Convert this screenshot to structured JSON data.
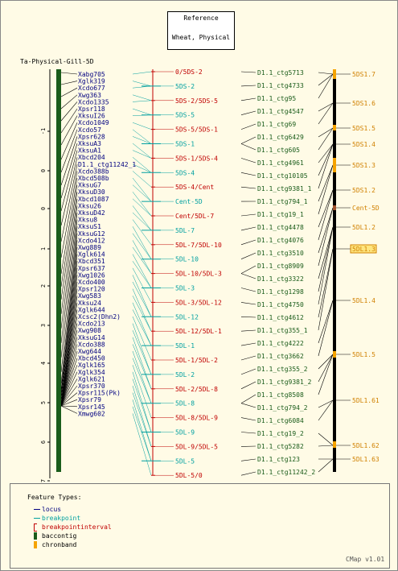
{
  "title_box": {
    "line1": "Reference",
    "line2": "Wheat, Physical"
  },
  "map_title": "Ta-Physical-Gill-5D",
  "footer": "CMap v1.01",
  "colors": {
    "locus": "#000080",
    "breakpoint": "#00a0a0",
    "interval": "#c00000",
    "contig": "#1a5c1a",
    "chronband": "#f5a300",
    "bg": "#fffbe6"
  },
  "axis_ticks": [
    "-1",
    "0",
    "0",
    "1",
    "2",
    "3",
    "4",
    "5",
    "6",
    "7"
  ],
  "loci": [
    "Xabg705",
    "Xglk319",
    "Xcdo677",
    "Xwg363",
    "Xcdo1335",
    "Xpsr118",
    "XksuI26",
    "Xcdo1049",
    "Xcdo57",
    "Xpsr628",
    "XksuA3",
    "XksuA1",
    "Xbcd204",
    "D1.1_ctg11242_1",
    "Xcdo388b",
    "Xbcd508b",
    "XksuG7",
    "XksuD30",
    "Xbcd1087",
    "Xksu26",
    "XksuD42",
    "Xksu8",
    "XksuS1",
    "XksuG12",
    "Xcdo412",
    "Xwg889",
    "Xglk614",
    "Xbcd351",
    "Xpsr637",
    "Xwg1026",
    "Xcdo400",
    "Xpsr120",
    "Xwg583",
    "Xksu24",
    "Xglk644",
    "Xcsc2(Dhn2)",
    "Xcdo213",
    "Xwg908",
    "XksuG14",
    "Xcdo388",
    "Xwg644",
    "Xbcd450",
    "Xglk165",
    "Xglk354",
    "Xglk621",
    "Xpsr370",
    "Xpsr115(Pk)",
    "Xpsr79",
    "Xpsr145",
    "Xmwg602"
  ],
  "breakpoints": [
    {
      "label": "0/5DS-2",
      "kind": "interval"
    },
    {
      "label": "5DS-2",
      "kind": "breakpoint"
    },
    {
      "label": "5DS-2/5DS-5",
      "kind": "interval"
    },
    {
      "label": "5DS-5",
      "kind": "breakpoint"
    },
    {
      "label": "5DS-5/5DS-1",
      "kind": "interval"
    },
    {
      "label": "5DS-1",
      "kind": "breakpoint"
    },
    {
      "label": "5DS-1/5DS-4",
      "kind": "interval"
    },
    {
      "label": "5DS-4",
      "kind": "breakpoint"
    },
    {
      "label": "5DS-4/Cent",
      "kind": "interval"
    },
    {
      "label": "Cent-5D",
      "kind": "breakpoint"
    },
    {
      "label": "Cent/5DL-7",
      "kind": "interval"
    },
    {
      "label": "5DL-7",
      "kind": "breakpoint"
    },
    {
      "label": "5DL-7/5DL-10",
      "kind": "interval"
    },
    {
      "label": "5DL-10",
      "kind": "breakpoint"
    },
    {
      "label": "5DL-10/5DL-3",
      "kind": "interval"
    },
    {
      "label": "5DL-3",
      "kind": "breakpoint"
    },
    {
      "label": "5DL-3/5DL-12",
      "kind": "interval"
    },
    {
      "label": "5DL-12",
      "kind": "breakpoint"
    },
    {
      "label": "5DL-12/5DL-1",
      "kind": "interval"
    },
    {
      "label": "5DL-1",
      "kind": "breakpoint"
    },
    {
      "label": "5DL-1/5DL-2",
      "kind": "interval"
    },
    {
      "label": "5DL-2",
      "kind": "breakpoint"
    },
    {
      "label": "5DL-2/5DL-8",
      "kind": "interval"
    },
    {
      "label": "5DL-8",
      "kind": "breakpoint"
    },
    {
      "label": "5DL-8/5DL-9",
      "kind": "interval"
    },
    {
      "label": "5DL-9",
      "kind": "breakpoint"
    },
    {
      "label": "5DL-9/5DL-5",
      "kind": "interval"
    },
    {
      "label": "5DL-5",
      "kind": "breakpoint"
    },
    {
      "label": "5DL-5/0",
      "kind": "interval"
    }
  ],
  "contigs": [
    "D1.1_ctg5713",
    "D1.1_ctg4733",
    "D1.1_ctg95",
    "D1.1_ctg4547",
    "D1.1_ctg69",
    "D1.1_ctg6429",
    "D1.1_ctg605",
    "D1.1_ctg4961",
    "D1.1_ctg10105",
    "D1.1_ctg9381_1",
    "D1.1_ctg794_1",
    "D1.1_ctg19_1",
    "D1.1_ctg4478",
    "D1.1_ctg4076",
    "D1.1_ctg3510",
    "D1.1_ctg8909",
    "D1.1_ctg3322",
    "D1.1_ctg1298",
    "D1.1_ctg4750",
    "D1.1_ctg4612",
    "D1.1_ctg355_1",
    "D1.1_ctg4222",
    "D1.1_ctg3662",
    "D1.1_ctg355_2",
    "D1.1_ctg9381_2",
    "D1.1_ctg8508",
    "D1.1_ctg794_2",
    "D1.1_ctg6084",
    "D1.1_ctg19_2",
    "D1.1_ctg5282",
    "D1.1_ctg123",
    "D1.1_ctg11242_2"
  ],
  "chronbands": [
    {
      "label": "5DS1.7",
      "highlight": false
    },
    {
      "label": "5DS1.6",
      "highlight": false
    },
    {
      "label": "5DS1.5",
      "highlight": false
    },
    {
      "label": "5DS1.4",
      "highlight": false
    },
    {
      "label": "5DS1.3",
      "highlight": false
    },
    {
      "label": "5DS1.2",
      "highlight": false
    },
    {
      "label": "Cent-5D",
      "highlight": false
    },
    {
      "label": "5DL1.2",
      "highlight": false
    },
    {
      "label": "5DL1.3",
      "highlight": true
    },
    {
      "label": "5DL1.4",
      "highlight": false
    },
    {
      "label": "5DL1.5",
      "highlight": false
    },
    {
      "label": "5DL1.61",
      "highlight": false
    },
    {
      "label": "5DL1.62",
      "highlight": false
    },
    {
      "label": "5DL1.63",
      "highlight": false
    }
  ],
  "legend": {
    "heading": "Feature Types:",
    "items": [
      {
        "label": "locus",
        "kind": "locus"
      },
      {
        "label": "breakpoint",
        "kind": "breakpoint"
      },
      {
        "label": "breakpointinterval",
        "kind": "interval"
      },
      {
        "label": "baccontig",
        "kind": "contig"
      },
      {
        "label": "chronband",
        "kind": "chronband"
      }
    ]
  }
}
